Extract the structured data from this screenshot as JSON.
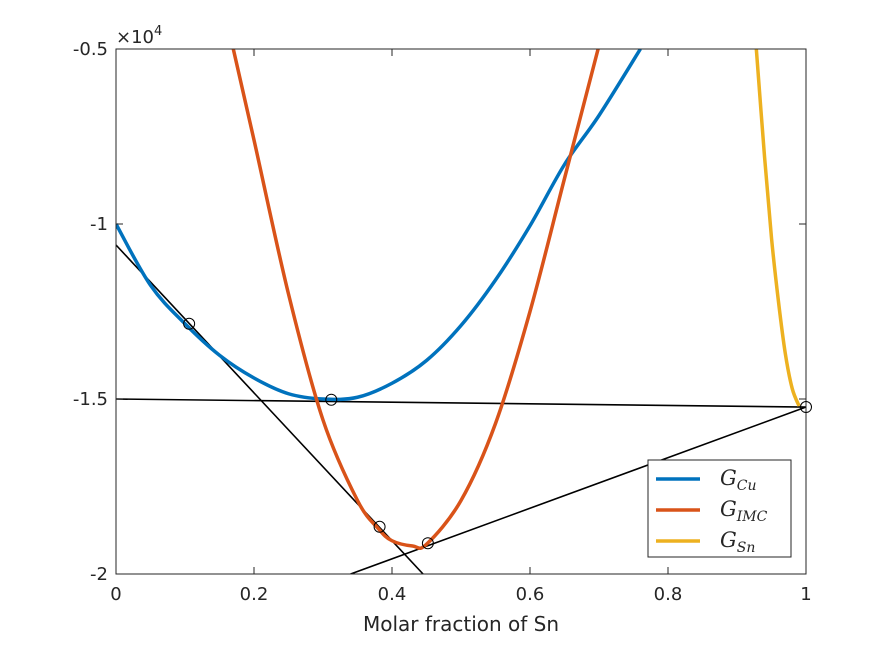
{
  "chart_data": {
    "type": "line",
    "xlabel": "Molar fraction of Sn",
    "ylabel": "",
    "xlim": [
      0,
      1
    ],
    "ylim": [
      -20000,
      -5000
    ],
    "x_ticks": [
      0,
      0.2,
      0.4,
      0.6,
      0.8,
      1
    ],
    "x_tick_labels": [
      "0",
      "0.2",
      "0.4",
      "0.6",
      "0.8",
      "1"
    ],
    "y_ticks": [
      -20000,
      -15000,
      -10000,
      -5000
    ],
    "y_tick_labels": [
      "-2",
      "-1.5",
      "-1",
      "-0.5"
    ],
    "y_exponent": {
      "base": "×10",
      "power": "4"
    },
    "grid": false,
    "legend_position": "bottom-right",
    "series": [
      {
        "name": "G_Cu",
        "legend_main": "G",
        "legend_sub": "Cu",
        "color": "#0072BD",
        "x": [
          0,
          0.05,
          0.1,
          0.15,
          0.2,
          0.25,
          0.3,
          0.35,
          0.4,
          0.45,
          0.5,
          0.55,
          0.6,
          0.65,
          0.7,
          0.76
        ],
        "y": [
          -10000,
          -11750,
          -12850,
          -13750,
          -14400,
          -14850,
          -15000,
          -14950,
          -14550,
          -13900,
          -12900,
          -11600,
          -10050,
          -8300,
          -6900,
          -5000
        ]
      },
      {
        "name": "G_IMC",
        "legend_main": "G",
        "legend_sub": "IMC",
        "color": "#D95319",
        "x": [
          0.17,
          0.2,
          0.25,
          0.3,
          0.35,
          0.38,
          0.4,
          0.43,
          0.45,
          0.5,
          0.55,
          0.6,
          0.65,
          0.7
        ],
        "y": [
          -5000,
          -7600,
          -12000,
          -15600,
          -17900,
          -18700,
          -19050,
          -19200,
          -19150,
          -17900,
          -15700,
          -12500,
          -8700,
          -4900
        ]
      },
      {
        "name": "G_Sn",
        "legend_main": "G",
        "legend_sub": "Sn",
        "color": "#EDB120",
        "x": [
          0.928,
          0.94,
          0.95,
          0.96,
          0.97,
          0.98,
          0.99
        ],
        "y": [
          -5000,
          -8100,
          -10400,
          -12200,
          -13700,
          -14700,
          -15200
        ]
      }
    ],
    "tangent_lines": [
      {
        "x": [
          0,
          1
        ],
        "y": [
          -15000,
          -15230
        ],
        "color": "#000000"
      },
      {
        "x": [
          0,
          0.445
        ],
        "y": [
          -10600,
          -20000
        ],
        "color": "#000000"
      },
      {
        "x": [
          0.34,
          1
        ],
        "y": [
          -20000,
          -15230
        ],
        "color": "#000000"
      }
    ],
    "markers": {
      "style": "open-circle",
      "color": "#000000",
      "x": [
        0.106,
        0.312,
        0.382,
        0.452,
        1.0
      ],
      "y": [
        -12850,
        -15020,
        -18650,
        -19120,
        -15230
      ]
    }
  }
}
